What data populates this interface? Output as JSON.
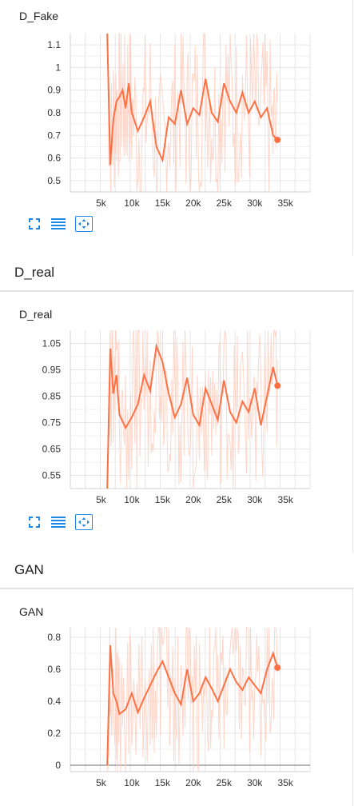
{
  "colors": {
    "accent": "#1e88e5",
    "series": "#ff7043",
    "series_light": "#ffccbc"
  },
  "sections": [
    {
      "header": "",
      "chart_title": "D_Fake",
      "controls": [
        "fit-domain-icon",
        "toggle-log-scale-icon",
        "fullscreen-icon"
      ]
    },
    {
      "header": "D_real",
      "chart_title": "D_real",
      "controls": [
        "fit-domain-icon",
        "toggle-log-scale-icon",
        "fullscreen-icon"
      ]
    },
    {
      "header": "GAN",
      "chart_title": "GAN",
      "controls": [
        "fit-domain-icon",
        "toggle-log-scale-icon",
        "fullscreen-icon"
      ]
    }
  ],
  "chart_data": [
    {
      "type": "line",
      "title": "D_Fake",
      "xlim": [
        0,
        39000
      ],
      "ylim": [
        0.45,
        1.15
      ],
      "xticks": [
        5000,
        10000,
        15000,
        20000,
        25000,
        30000,
        35000
      ],
      "xtick_labels": [
        "5k",
        "10k",
        "15k",
        "20k",
        "25k",
        "30k",
        "35k"
      ],
      "yticks": [
        0.5,
        0.6,
        0.7,
        0.8,
        0.9,
        1.0,
        1.1
      ],
      "ytick_labels": [
        "0.5",
        "0.6",
        "0.7",
        "0.8",
        "0.9",
        "1",
        "1.1"
      ],
      "grid": true,
      "series": [
        {
          "x": [
            6000,
            6500,
            7000,
            7500,
            8000,
            8500,
            9000,
            9500,
            10000,
            11000,
            12000,
            13000,
            14000,
            15000,
            16000,
            17000,
            18000,
            19000,
            20000,
            21000,
            22000,
            23000,
            24000,
            25000,
            26000,
            27000,
            28000,
            29000,
            30000,
            31000,
            32000,
            33000,
            33700
          ],
          "y": [
            1.15,
            0.57,
            0.77,
            0.85,
            0.87,
            0.9,
            0.82,
            0.93,
            0.8,
            0.72,
            0.78,
            0.85,
            0.65,
            0.59,
            0.78,
            0.75,
            0.9,
            0.75,
            0.82,
            0.79,
            0.95,
            0.8,
            0.76,
            0.93,
            0.85,
            0.8,
            0.89,
            0.8,
            0.85,
            0.78,
            0.82,
            0.7,
            0.68
          ]
        }
      ]
    },
    {
      "type": "line",
      "title": "D_real",
      "xlim": [
        0,
        39000
      ],
      "ylim": [
        0.5,
        1.1
      ],
      "xticks": [
        5000,
        10000,
        15000,
        20000,
        25000,
        30000,
        35000
      ],
      "xtick_labels": [
        "5k",
        "10k",
        "15k",
        "20k",
        "25k",
        "30k",
        "35k"
      ],
      "yticks": [
        0.55,
        0.65,
        0.75,
        0.85,
        0.95,
        1.05
      ],
      "ytick_labels": [
        "0.55",
        "0.65",
        "0.75",
        "0.85",
        "0.95",
        "1.05"
      ],
      "grid": true,
      "series": [
        {
          "x": [
            6000,
            6500,
            7000,
            7500,
            8000,
            9000,
            10000,
            11000,
            12000,
            13000,
            14000,
            15000,
            16000,
            17000,
            18000,
            19000,
            20000,
            21000,
            22000,
            23000,
            24000,
            25000,
            26000,
            27000,
            28000,
            29000,
            30000,
            31000,
            32000,
            33000,
            33700
          ],
          "y": [
            0.5,
            1.03,
            0.86,
            0.93,
            0.78,
            0.73,
            0.77,
            0.82,
            0.93,
            0.87,
            1.04,
            0.98,
            0.86,
            0.77,
            0.82,
            0.92,
            0.78,
            0.74,
            0.88,
            0.82,
            0.76,
            0.91,
            0.79,
            0.75,
            0.83,
            0.79,
            0.88,
            0.74,
            0.85,
            0.96,
            0.89
          ]
        }
      ]
    },
    {
      "type": "line",
      "title": "GAN",
      "xlim": [
        0,
        39000
      ],
      "ylim": [
        -0.04,
        0.86
      ],
      "xticks": [
        5000,
        10000,
        15000,
        20000,
        25000,
        30000,
        35000
      ],
      "xtick_labels": [
        "5k",
        "10k",
        "15k",
        "20k",
        "25k",
        "30k",
        "35k"
      ],
      "yticks": [
        0,
        0.2,
        0.4,
        0.6,
        0.8
      ],
      "ytick_labels": [
        "0",
        "0.2",
        "0.4",
        "0.6",
        "0.8"
      ],
      "grid": true,
      "series": [
        {
          "x": [
            6000,
            6500,
            7000,
            7500,
            8000,
            9000,
            10000,
            11000,
            12000,
            13000,
            14000,
            15000,
            16000,
            17000,
            18000,
            19000,
            20000,
            21000,
            22000,
            23000,
            24000,
            25000,
            26000,
            27000,
            28000,
            29000,
            30000,
            31000,
            32000,
            33000,
            33700
          ],
          "y": [
            0,
            0.75,
            0.45,
            0.4,
            0.32,
            0.35,
            0.45,
            0.33,
            0.42,
            0.5,
            0.58,
            0.65,
            0.55,
            0.45,
            0.38,
            0.6,
            0.4,
            0.45,
            0.55,
            0.48,
            0.4,
            0.5,
            0.6,
            0.52,
            0.47,
            0.55,
            0.5,
            0.45,
            0.6,
            0.7,
            0.61
          ]
        }
      ]
    }
  ]
}
